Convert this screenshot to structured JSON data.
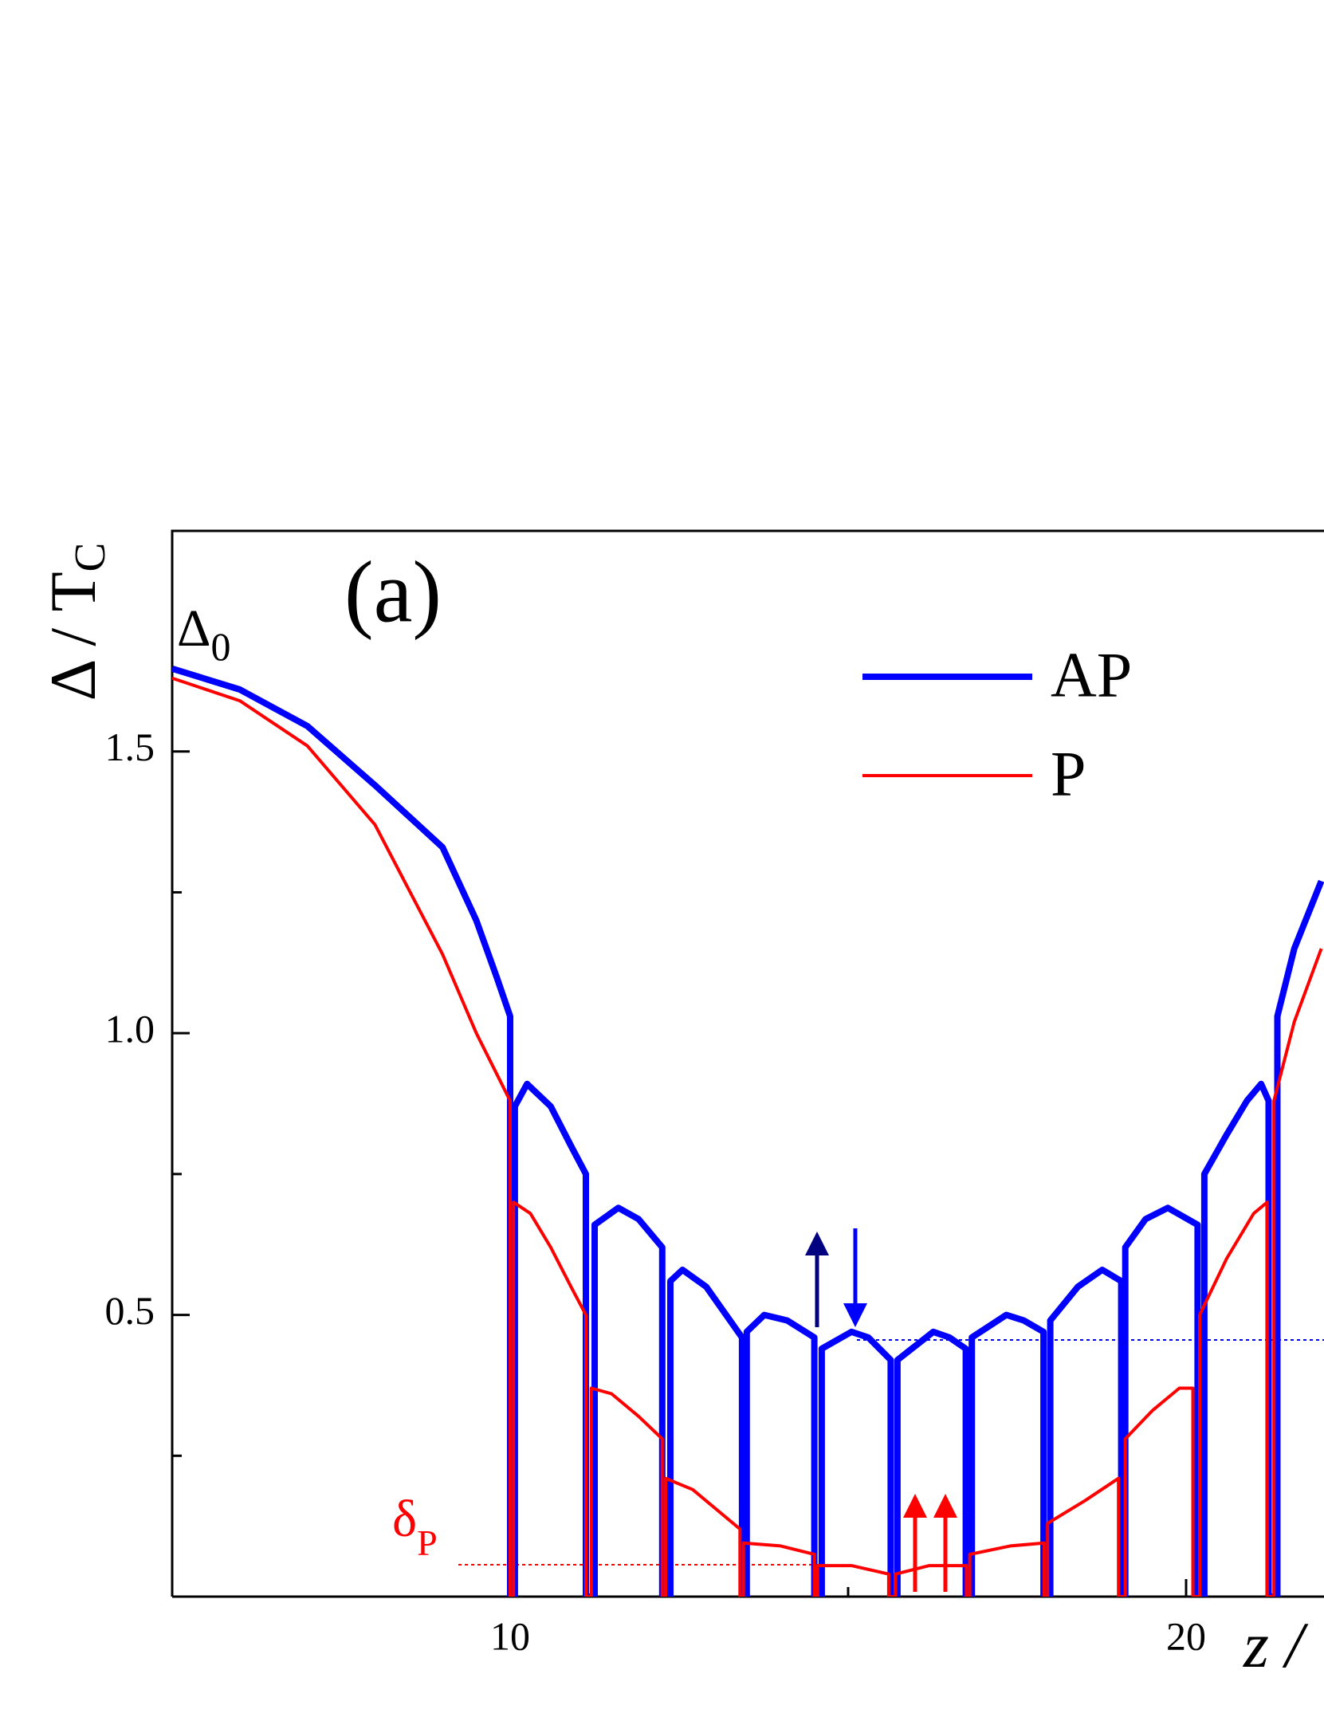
{
  "chart_data": {
    "type": "line",
    "label": "(a)",
    "ylabel": "Δ / T",
    "ylabel_sub": "C",
    "xlabel": "z /",
    "delta0_label": "Δ",
    "delta0_sub": "0",
    "deltaP_label": "δ",
    "deltaP_sub": "P",
    "xlim": [
      5,
      22
    ],
    "xticks": [
      10,
      20
    ],
    "minor_xticks": [
      15
    ],
    "ylim": [
      0,
      1.9
    ],
    "yticks": [
      0.5,
      {
        "value": 1,
        "label": "1.0"
      },
      1.5
    ],
    "minor_yticks": [
      0.25,
      0.75,
      1.25
    ],
    "series": [
      {
        "name": "AP",
        "color": "#0000ff",
        "width": 8,
        "x": [
          5,
          6,
          7,
          8,
          9,
          9.5,
          9.8,
          10,
          10,
          10.07,
          10.07,
          10.25,
          10.6,
          10.9,
          11.12,
          11.12,
          11.25,
          11.25,
          11.6,
          11.9,
          12.25,
          12.25,
          12.37,
          12.37,
          12.55,
          12.9,
          13.43,
          13.43,
          13.5,
          13.5,
          13.76,
          14.1,
          14.5,
          14.5,
          14.61,
          14.61,
          15.05,
          15.3,
          15.63,
          15.63,
          15.73,
          15.73,
          16.26,
          16.5,
          16.74,
          16.74,
          16.83,
          16.83,
          17.34,
          17.6,
          17.89,
          17.89,
          17.99,
          17.99,
          18.4,
          18.76,
          19.04,
          19.04,
          19.1,
          19.1,
          19.4,
          19.73,
          20.17,
          20.17,
          20.27,
          20.27,
          20.6,
          20.9,
          21.11,
          21.22,
          21.22,
          21.35,
          21.35,
          21.6,
          22
        ],
        "values": [
          1.647,
          1.61,
          1.545,
          1.44,
          1.33,
          1.2,
          1.1,
          1.03,
          0,
          0,
          0.87,
          0.91,
          0.87,
          0.8,
          0.75,
          0,
          0,
          0.66,
          0.69,
          0.67,
          0.62,
          0,
          0,
          0.56,
          0.58,
          0.55,
          0.46,
          0,
          0,
          0.47,
          0.5,
          0.49,
          0.46,
          0,
          0,
          0.44,
          0.47,
          0.46,
          0.42,
          0,
          0,
          0.42,
          0.47,
          0.46,
          0.44,
          0,
          0,
          0.46,
          0.5,
          0.49,
          0.47,
          0,
          0,
          0.49,
          0.55,
          0.58,
          0.56,
          0,
          0,
          0.62,
          0.67,
          0.69,
          0.66,
          0,
          0,
          0.75,
          0.82,
          0.88,
          0.91,
          0.88,
          0,
          0,
          1.03,
          1.15,
          1.27
        ]
      },
      {
        "name": "P",
        "color": "#ff0000",
        "width": 4,
        "x": [
          5,
          6,
          7,
          8,
          9,
          9.5,
          10,
          10,
          10.05,
          10.05,
          10.3,
          10.6,
          10.9,
          11.12,
          11.12,
          11.2,
          11.2,
          11.5,
          11.9,
          12.25,
          12.25,
          12.3,
          12.3,
          12.7,
          13.0,
          13.4,
          13.4,
          13.45,
          13.45,
          14.0,
          14.5,
          14.5,
          14.55,
          14.55,
          15.05,
          15.6,
          15.6,
          15.7,
          15.7,
          16.2,
          16.75,
          16.75,
          16.8,
          16.8,
          17.4,
          17.9,
          17.9,
          17.95,
          17.95,
          18.5,
          19.0,
          19.0,
          19.1,
          19.1,
          19.5,
          19.9,
          20.1,
          20.1,
          20.2,
          20.2,
          20.6,
          21.0,
          21.2,
          21.2,
          21.3,
          21.3,
          21.6,
          22
        ],
        "values": [
          1.63,
          1.59,
          1.51,
          1.37,
          1.14,
          1.0,
          0.88,
          0,
          0,
          0.7,
          0.68,
          0.62,
          0.55,
          0.5,
          0,
          0,
          0.37,
          0.36,
          0.32,
          0.28,
          0,
          0,
          0.21,
          0.19,
          0.16,
          0.12,
          0,
          0,
          0.095,
          0.09,
          0.075,
          0,
          0,
          0.055,
          0.055,
          0.04,
          0,
          0,
          0.04,
          0.055,
          0.055,
          0,
          0,
          0.075,
          0.09,
          0.095,
          0,
          0,
          0.13,
          0.17,
          0.21,
          0,
          0,
          0.28,
          0.33,
          0.37,
          0.37,
          0,
          0,
          0.5,
          0.6,
          0.68,
          0.7,
          0,
          0,
          0.88,
          1.02,
          1.15
        ]
      }
    ]
  }
}
